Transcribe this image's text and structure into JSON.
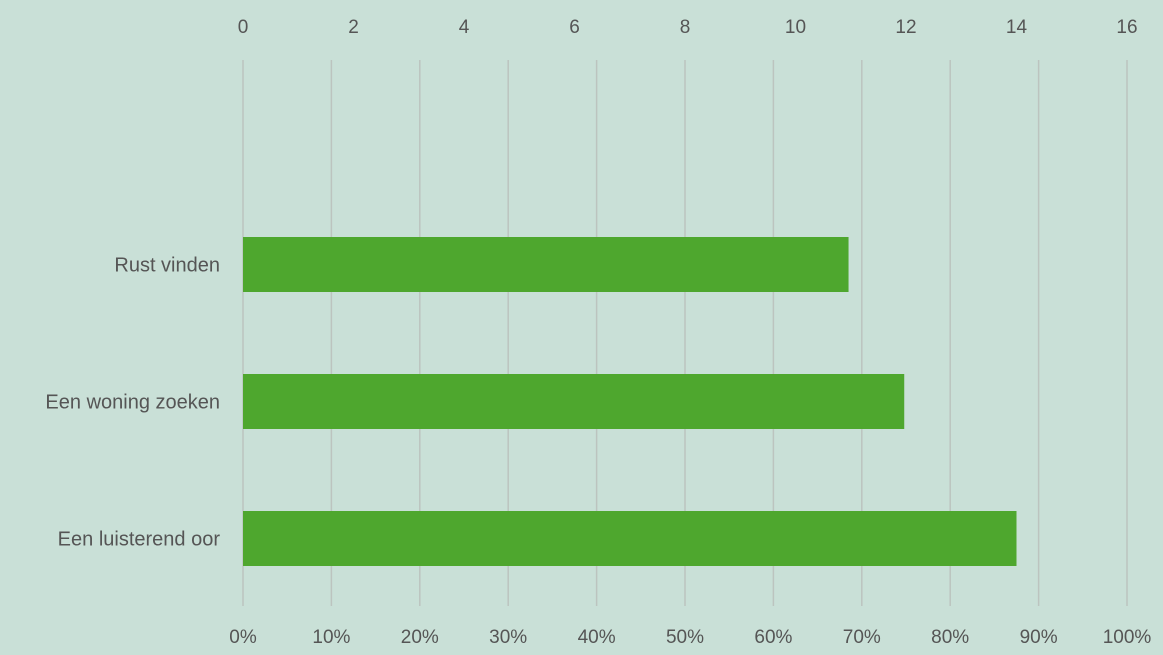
{
  "colors": {
    "background": "#c9e0d7",
    "bar": "#4ea72e",
    "gridline": "#bcc4bf",
    "text": "#555555"
  },
  "chart_data": {
    "type": "bar",
    "orientation": "horizontal",
    "title": "",
    "categories": [
      "Rust vinden",
      "Een woning zoeken",
      "Een luisterend oor"
    ],
    "values": [
      0.685,
      0.748,
      0.875
    ],
    "x_bottom": {
      "label": "",
      "range": [
        0,
        1
      ],
      "ticks": [
        0,
        0.1,
        0.2,
        0.3,
        0.4,
        0.5,
        0.6,
        0.7,
        0.8,
        0.9,
        1.0
      ],
      "tick_labels": [
        "0%",
        "10%",
        "20%",
        "30%",
        "40%",
        "50%",
        "60%",
        "70%",
        "80%",
        "90%",
        "100%"
      ]
    },
    "x_top": {
      "label": "",
      "range": [
        0,
        16
      ],
      "ticks": [
        0,
        2,
        4,
        6,
        8,
        10,
        12,
        14,
        16
      ],
      "tick_labels": [
        "0",
        "2",
        "4",
        "6",
        "8",
        "10",
        "12",
        "14",
        "16"
      ]
    },
    "ylabel": "",
    "grid": true,
    "legend": "none"
  }
}
